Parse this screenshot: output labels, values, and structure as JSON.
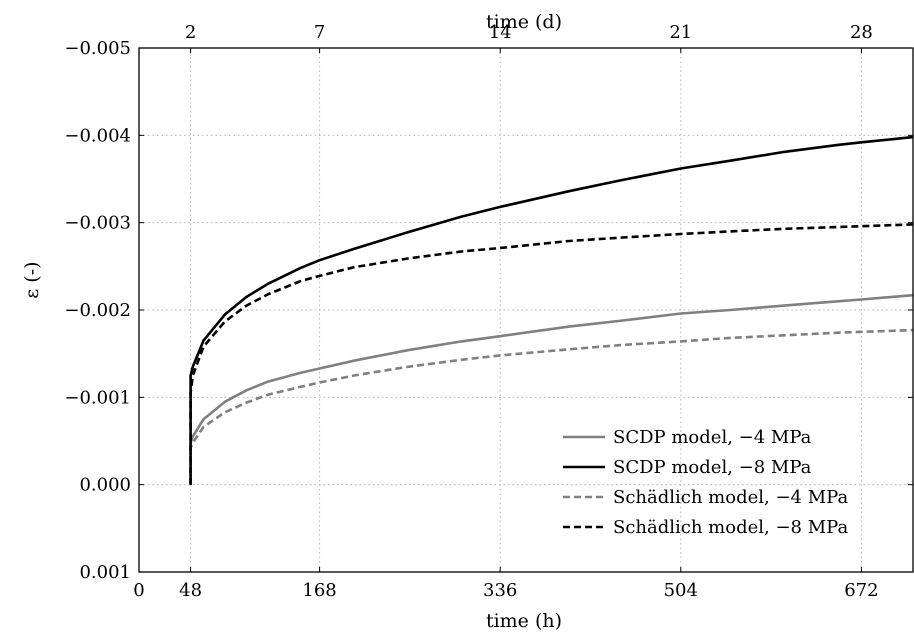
{
  "chart_data": {
    "type": "line",
    "xlabel_bottom": "time (h)",
    "xlabel_top": "time (d)",
    "ylabel": "ε (-)",
    "x_range": [
      0,
      720
    ],
    "y_range": [
      -0.005,
      0.001
    ],
    "y_reversed": true,
    "grid": true,
    "legend_position": "bottom-right",
    "bottom_ticks": [
      {
        "value": 0,
        "label": "0"
      },
      {
        "value": 48,
        "label": "48"
      },
      {
        "value": 168,
        "label": "168"
      },
      {
        "value": 336,
        "label": "336"
      },
      {
        "value": 504,
        "label": "504"
      },
      {
        "value": 672,
        "label": "672"
      }
    ],
    "top_ticks": [
      {
        "value": 48,
        "label": "2"
      },
      {
        "value": 168,
        "label": "7"
      },
      {
        "value": 336,
        "label": "14"
      },
      {
        "value": 504,
        "label": "21"
      },
      {
        "value": 672,
        "label": "28"
      }
    ],
    "y_ticks": [
      {
        "value": -0.005,
        "label": "−0.005"
      },
      {
        "value": -0.004,
        "label": "−0.004"
      },
      {
        "value": -0.003,
        "label": "−0.003"
      },
      {
        "value": -0.002,
        "label": "−0.002"
      },
      {
        "value": -0.001,
        "label": "−0.001"
      },
      {
        "value": 0.0,
        "label": "0.000"
      },
      {
        "value": 0.001,
        "label": "0.001"
      }
    ],
    "series": [
      {
        "name": "SCDP model, −4 MPa",
        "color": "#808080",
        "dash": "solid",
        "x": [
          48,
          48,
          50,
          60,
          80,
          100,
          120,
          150,
          168,
          200,
          250,
          300,
          336,
          400,
          450,
          504,
          550,
          600,
          650,
          672,
          720
        ],
        "y": [
          0.0,
          -0.00048,
          -0.00055,
          -0.00075,
          -0.00095,
          -0.00108,
          -0.00118,
          -0.00128,
          -0.00133,
          -0.00142,
          -0.00154,
          -0.00164,
          -0.0017,
          -0.00181,
          -0.00188,
          -0.00196,
          -0.002,
          -0.00205,
          -0.0021,
          -0.00212,
          -0.00217
        ]
      },
      {
        "name": "SCDP model, −8 MPa",
        "color": "#000000",
        "dash": "solid",
        "x": [
          48,
          48,
          50,
          60,
          80,
          100,
          120,
          150,
          168,
          200,
          250,
          300,
          336,
          400,
          450,
          504,
          550,
          600,
          650,
          672,
          720
        ],
        "y": [
          0.0,
          -0.00125,
          -0.00135,
          -0.00165,
          -0.00195,
          -0.00215,
          -0.0023,
          -0.00248,
          -0.00257,
          -0.0027,
          -0.00289,
          -0.00307,
          -0.00318,
          -0.00336,
          -0.00349,
          -0.00362,
          -0.00371,
          -0.00381,
          -0.00389,
          -0.00392,
          -0.00398
        ]
      },
      {
        "name": "Schädlich model, −4 MPa",
        "color": "#808080",
        "dash": "dashed",
        "x": [
          48,
          48,
          50,
          60,
          80,
          100,
          120,
          150,
          168,
          200,
          250,
          300,
          336,
          400,
          450,
          504,
          550,
          600,
          650,
          672,
          720
        ],
        "y": [
          0.0,
          -0.00042,
          -0.00048,
          -0.00066,
          -0.00083,
          -0.00094,
          -0.00103,
          -0.00112,
          -0.00117,
          -0.00125,
          -0.00135,
          -0.00143,
          -0.00148,
          -0.00155,
          -0.0016,
          -0.00164,
          -0.00168,
          -0.00171,
          -0.00174,
          -0.00175,
          -0.00177
        ]
      },
      {
        "name": "Schädlich model, −8 MPa",
        "color": "#000000",
        "dash": "dashed",
        "x": [
          48,
          48,
          50,
          60,
          80,
          100,
          120,
          150,
          168,
          200,
          250,
          300,
          336,
          400,
          450,
          504,
          550,
          600,
          650,
          672,
          720
        ],
        "y": [
          0.0,
          -0.00105,
          -0.00125,
          -0.00158,
          -0.00187,
          -0.00205,
          -0.00218,
          -0.00233,
          -0.00239,
          -0.00249,
          -0.00259,
          -0.00267,
          -0.00271,
          -0.00279,
          -0.00283,
          -0.00287,
          -0.0029,
          -0.00293,
          -0.00295,
          -0.00296,
          -0.00298
        ]
      }
    ]
  }
}
